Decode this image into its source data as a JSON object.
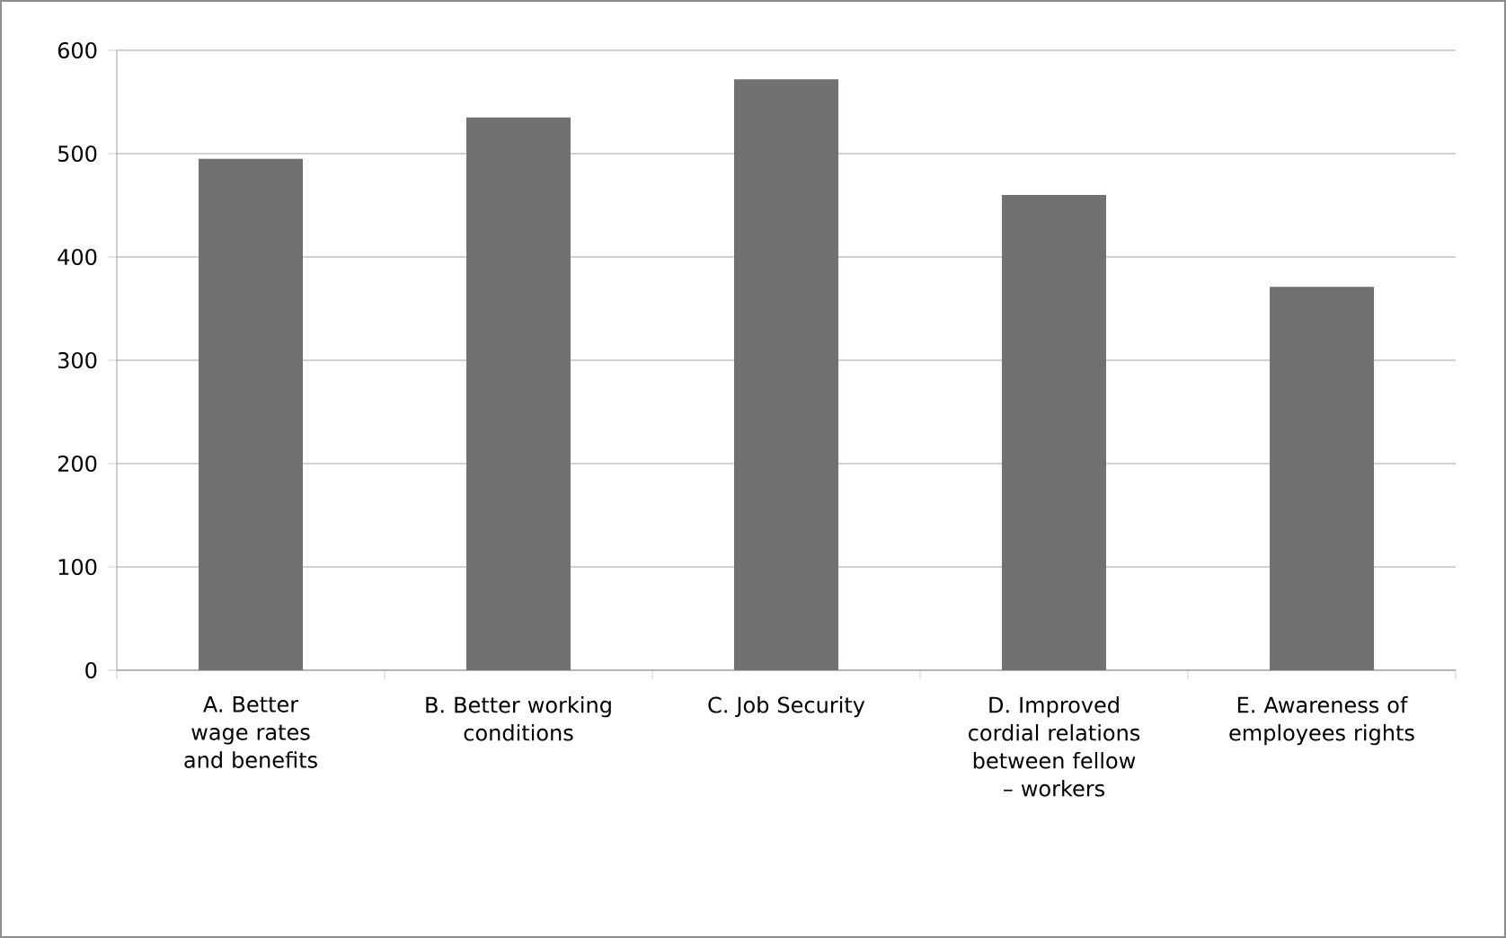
{
  "chart_data": {
    "type": "bar",
    "categories": [
      "A. Better wage rates and benefits",
      "B. Better working conditions",
      "C. Job Security",
      "D.  Improved cordial relations between fellow – workers",
      "E. Awareness of employees rights"
    ],
    "values": [
      495,
      535,
      572,
      460,
      371
    ],
    "color": "#6f7271",
    "ylim": [
      0,
      600
    ],
    "yticks": [
      0,
      100,
      200,
      300,
      400,
      500,
      600
    ],
    "grid": "y"
  }
}
